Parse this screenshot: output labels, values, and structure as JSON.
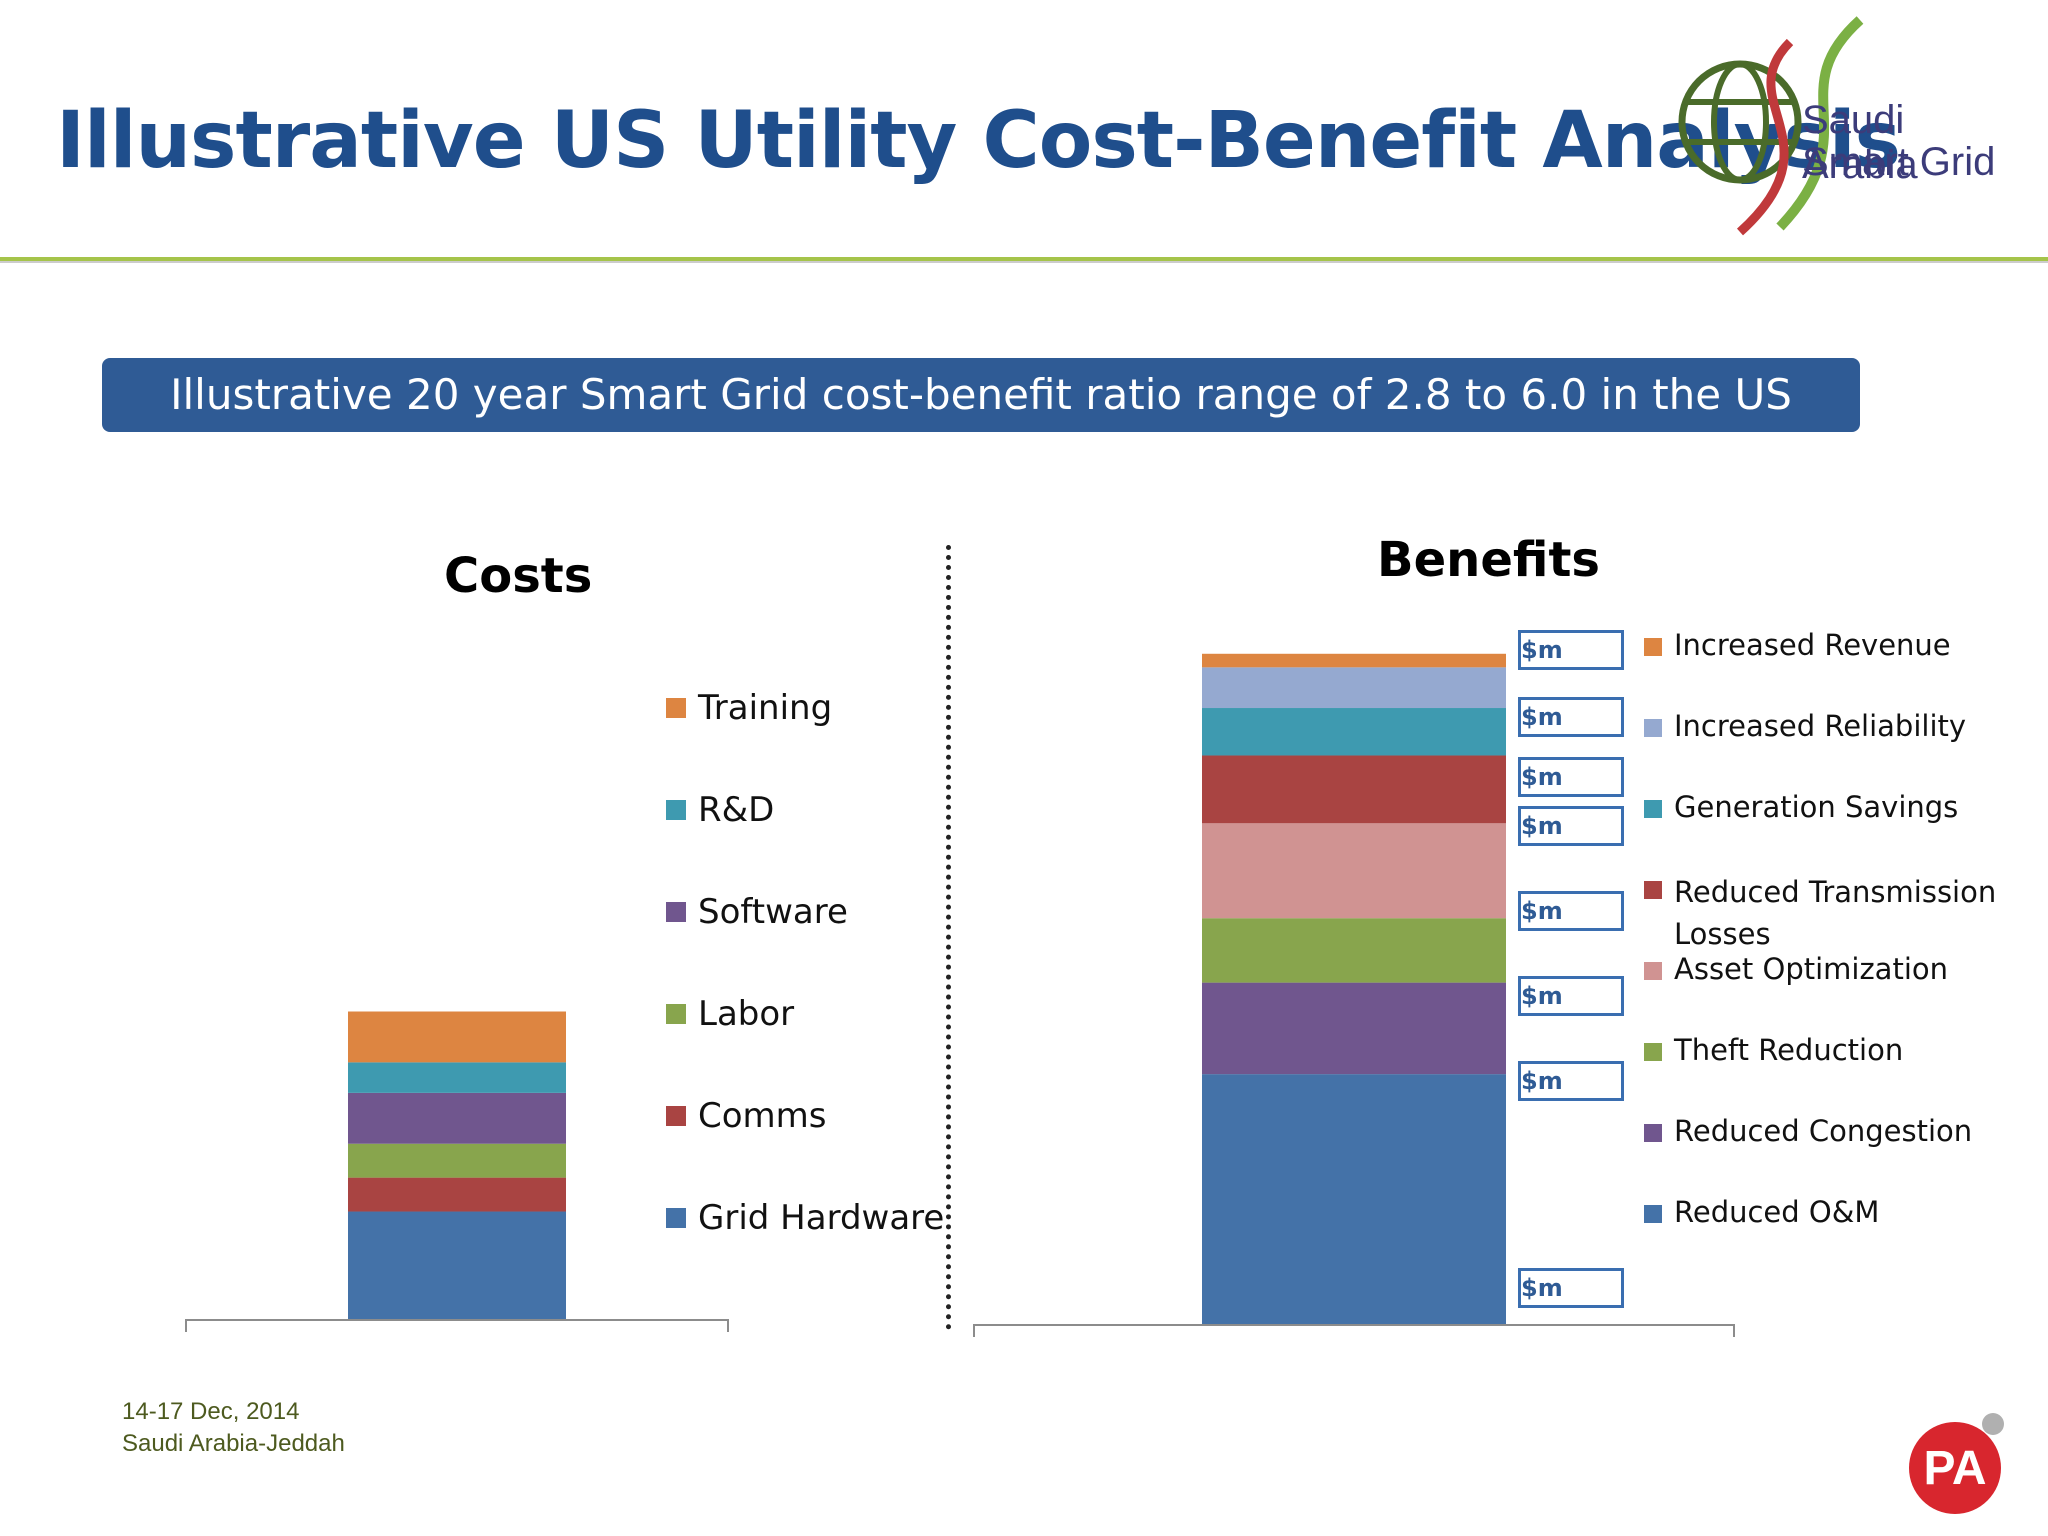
{
  "header": {
    "title": "Illustrative US Utility Cost-Benefit Analysis",
    "logo_line1": "Saudi Arabia",
    "logo_line2": "Smart Grid"
  },
  "banner": {
    "text": "Illustrative 20 year Smart Grid cost-benefit ratio range of 2.8 to 6.0 in the US"
  },
  "chart_data": [
    {
      "type": "bar",
      "stacked": true,
      "title": "Costs",
      "xlabel": "",
      "ylabel": "",
      "ylim": [
        0,
        100
      ],
      "grid": false,
      "legend_position": "right",
      "series": [
        {
          "name": "Grid Hardware",
          "values": [
            16
          ],
          "color": "#4472a8"
        },
        {
          "name": "Comms",
          "values": [
            5
          ],
          "color": "#a94442"
        },
        {
          "name": "Labor",
          "values": [
            5
          ],
          "color": "#88a54d"
        },
        {
          "name": "Software",
          "values": [
            7.5
          ],
          "color": "#70568e"
        },
        {
          "name": "R&D",
          "values": [
            4.5
          ],
          "color": "#3e9ab0"
        },
        {
          "name": "Training",
          "values": [
            7.5
          ],
          "color": "#dd8541"
        }
      ]
    },
    {
      "type": "bar",
      "stacked": true,
      "title": "Benefits",
      "xlabel": "",
      "ylabel": "",
      "ylim": [
        0,
        100
      ],
      "grid": false,
      "legend_position": "right",
      "series": [
        {
          "name": "Reduced O&M",
          "values": [
            37
          ],
          "color": "#4472a8",
          "data_label": "$m"
        },
        {
          "name": "Reduced Congestion",
          "values": [
            13.5
          ],
          "color": "#70568e",
          "data_label": "$m"
        },
        {
          "name": "Theft Reduction",
          "values": [
            9.5
          ],
          "color": "#88a54d",
          "data_label": "$m"
        },
        {
          "name": "Asset Optimization",
          "values": [
            14
          ],
          "color": "#d09392",
          "data_label": "$m"
        },
        {
          "name": "Reduced Transmission Losses",
          "values": [
            10
          ],
          "color": "#a94442",
          "data_label": "$m"
        },
        {
          "name": "Generation Savings",
          "values": [
            7
          ],
          "color": "#3e9ab0",
          "data_label": "$m"
        },
        {
          "name": "Increased Reliability",
          "values": [
            6
          ],
          "color": "#95a9d0",
          "data_label": "$m"
        },
        {
          "name": "Increased Revenue",
          "values": [
            2
          ],
          "color": "#dd8541",
          "data_label": "$m"
        }
      ]
    }
  ],
  "footer": {
    "date": "14-17 Dec, 2014",
    "location": "Saudi Arabia-Jeddah",
    "company_logo": "PA"
  }
}
